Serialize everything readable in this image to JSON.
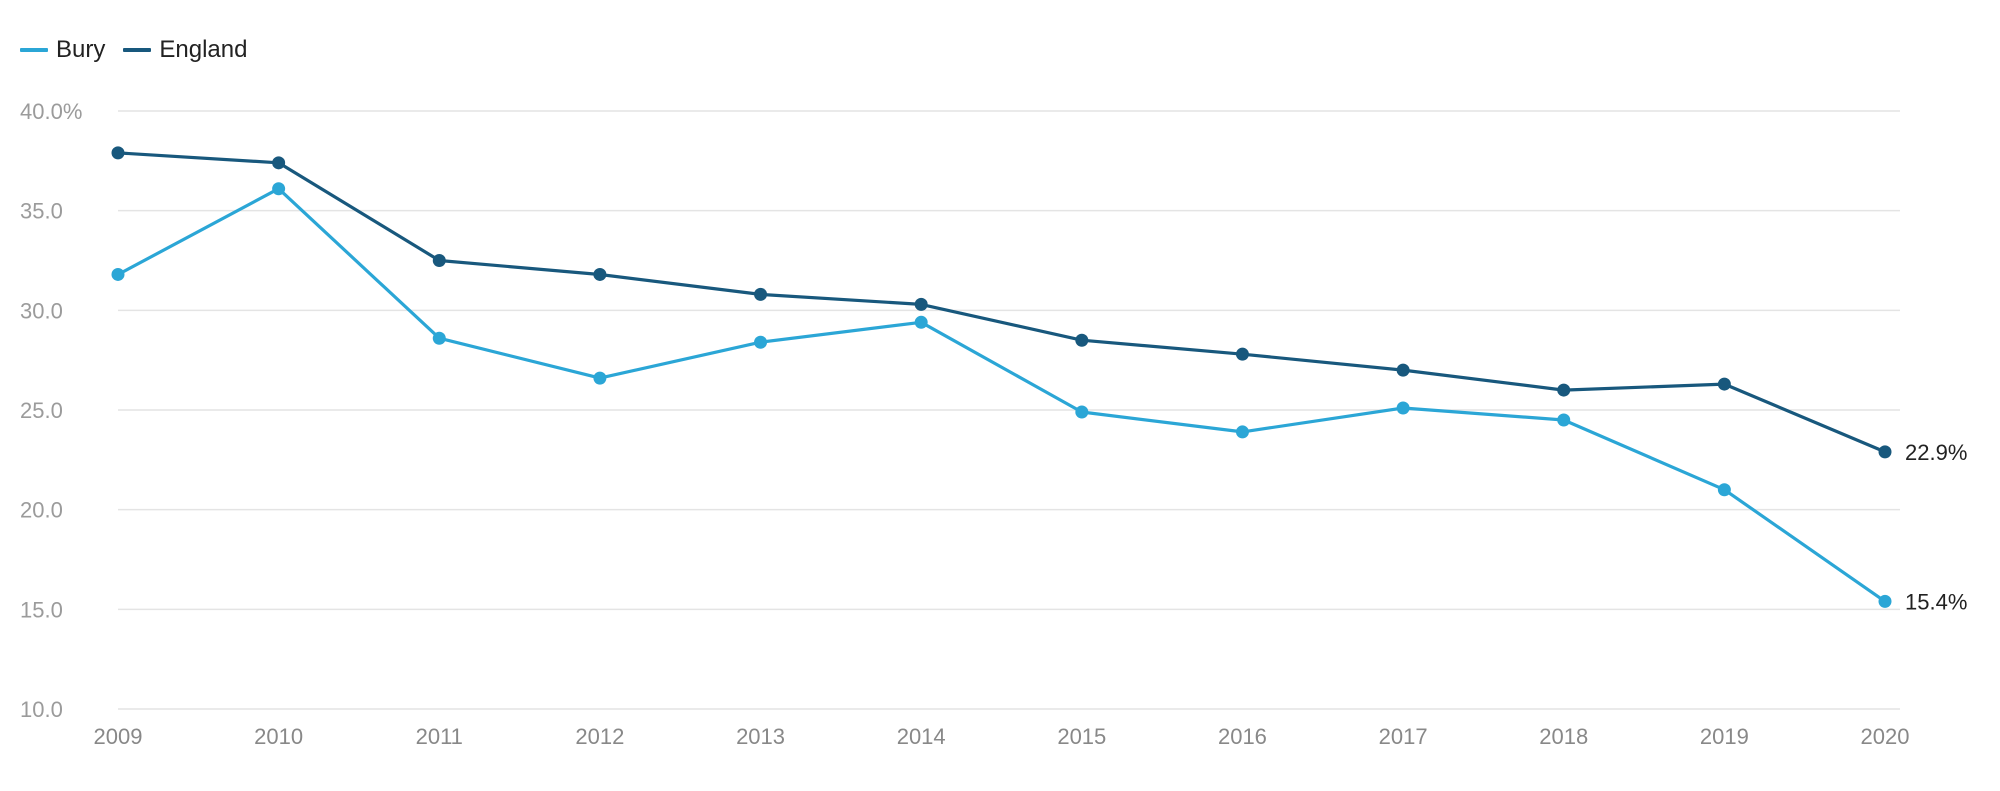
{
  "chart_data": {
    "type": "line",
    "title": "",
    "xlabel": "",
    "ylabel": "",
    "x": [
      "2009",
      "2010",
      "2011",
      "2012",
      "2013",
      "2014",
      "2015",
      "2016",
      "2017",
      "2018",
      "2019",
      "2020"
    ],
    "ylim": [
      10,
      40
    ],
    "yticks": [
      10,
      15,
      20,
      25,
      30,
      35,
      40
    ],
    "ytick_labels": [
      "10.0",
      "15.0",
      "20.0",
      "25.0",
      "30.0",
      "35.0",
      "40.0%"
    ],
    "grid": true,
    "legend_position": "top-left",
    "series": [
      {
        "name": "Bury",
        "color": "#2ba6d6",
        "values": [
          31.8,
          36.1,
          28.6,
          26.6,
          28.4,
          29.4,
          24.9,
          23.9,
          25.1,
          24.5,
          21.0,
          15.4
        ],
        "end_label": "15.4%"
      },
      {
        "name": "England",
        "color": "#18587d",
        "values": [
          37.9,
          37.4,
          32.5,
          31.8,
          30.8,
          30.3,
          28.5,
          27.8,
          27.0,
          26.0,
          26.3,
          22.9
        ],
        "end_label": "22.9%"
      }
    ]
  }
}
